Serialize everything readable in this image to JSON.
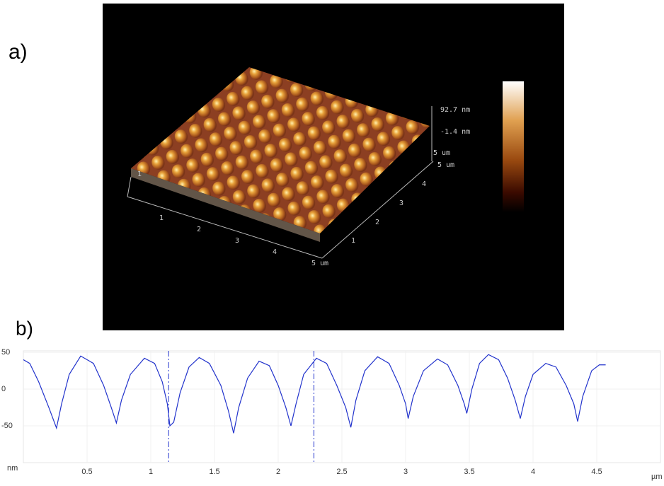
{
  "panel_a": {
    "label": "a)",
    "scale_max": "92.7 nm",
    "scale_min": "-1.4 nm",
    "z_axis_label": "5 um",
    "left_tick": "1",
    "front_axis": [
      "1",
      "2",
      "3",
      "4",
      "5 um"
    ],
    "right_axis": [
      "1",
      "2",
      "3",
      "4",
      "5 um"
    ]
  },
  "chart_data": {
    "type": "line",
    "panel_label": "b)",
    "y_unit": "nm",
    "x_unit": "µm",
    "color": "#2233cc",
    "x": [
      0,
      0.05,
      0.12,
      0.2,
      0.26,
      0.3,
      0.36,
      0.45,
      0.55,
      0.63,
      0.69,
      0.73,
      0.77,
      0.84,
      0.95,
      1.03,
      1.09,
      1.13,
      1.15,
      1.18,
      1.23,
      1.3,
      1.38,
      1.46,
      1.55,
      1.61,
      1.65,
      1.69,
      1.76,
      1.85,
      1.93,
      2.0,
      2.06,
      2.1,
      2.14,
      2.2,
      2.3,
      2.38,
      2.46,
      2.53,
      2.57,
      2.61,
      2.68,
      2.78,
      2.87,
      2.95,
      3.0,
      3.02,
      3.06,
      3.14,
      3.25,
      3.33,
      3.41,
      3.46,
      3.48,
      3.52,
      3.58,
      3.65,
      3.73,
      3.8,
      3.86,
      3.9,
      3.94,
      4.0,
      4.1,
      4.18,
      4.26,
      4.32,
      4.35,
      4.39,
      4.46,
      4.52,
      4.57
    ],
    "values": [
      40,
      35,
      10,
      -25,
      -53,
      -20,
      20,
      45,
      35,
      5,
      -25,
      -46,
      -15,
      20,
      42,
      35,
      10,
      -20,
      -50,
      -45,
      -5,
      30,
      43,
      35,
      5,
      -30,
      -60,
      -25,
      15,
      38,
      32,
      5,
      -25,
      -50,
      -20,
      20,
      42,
      35,
      5,
      -25,
      -52,
      -15,
      25,
      44,
      35,
      5,
      -20,
      -40,
      -10,
      25,
      41,
      33,
      5,
      -20,
      -33,
      0,
      35,
      47,
      40,
      15,
      -15,
      -40,
      -10,
      20,
      35,
      30,
      5,
      -20,
      -44,
      -10,
      25,
      33,
      33
    ],
    "cursors": [
      1.14,
      2.28
    ],
    "xlim": [
      0,
      5
    ],
    "ylim": [
      -100,
      52
    ],
    "xticks": [
      0.5,
      1,
      1.5,
      2,
      2.5,
      3,
      3.5,
      4,
      4.5
    ],
    "yticks": [
      50,
      0,
      -50
    ],
    "grid": true
  }
}
